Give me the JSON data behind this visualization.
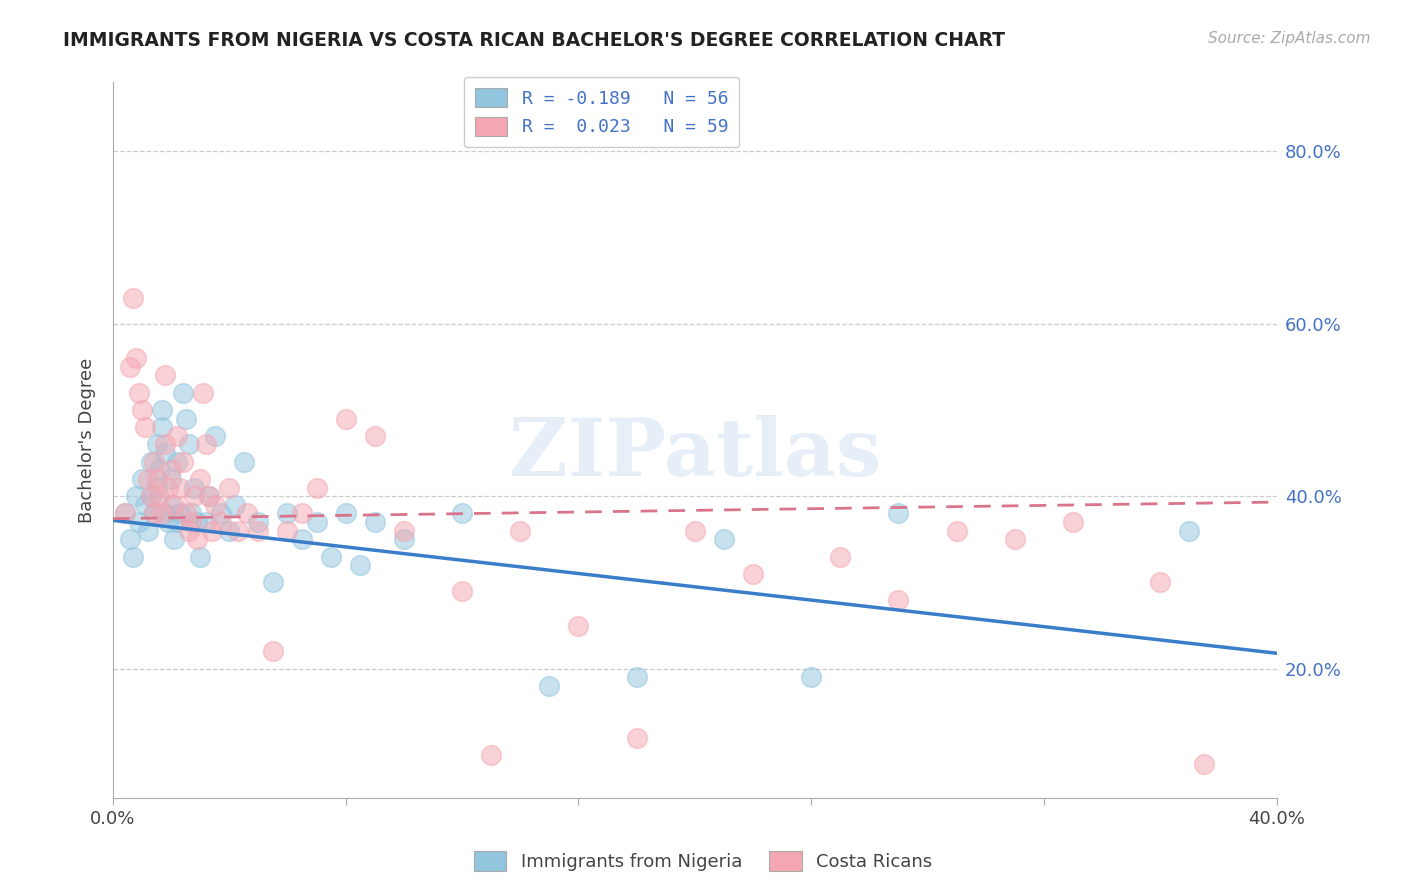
{
  "title": "IMMIGRANTS FROM NIGERIA VS COSTA RICAN BACHELOR'S DEGREE CORRELATION CHART",
  "source": "Source: ZipAtlas.com",
  "ylabel": "Bachelor's Degree",
  "xlim": [
    0.0,
    0.4
  ],
  "ylim": [
    0.05,
    0.88
  ],
  "yticks": [
    0.2,
    0.4,
    0.6,
    0.8
  ],
  "ytick_labels": [
    "20.0%",
    "40.0%",
    "60.0%",
    "80.0%"
  ],
  "legend_entry1": "R = -0.189   N = 56",
  "legend_entry2": "R =  0.023   N = 59",
  "blue_color": "#92c5de",
  "pink_color": "#f4a6b2",
  "blue_line_color": "#3a7dc9",
  "pink_line_color": "#d9748a",
  "watermark": "ZIPatlas",
  "blue_intercept": 0.372,
  "blue_slope": -0.385,
  "pink_intercept": 0.374,
  "pink_slope": 0.048,
  "blue_scatter_x": [
    0.004,
    0.006,
    0.007,
    0.008,
    0.009,
    0.01,
    0.011,
    0.012,
    0.013,
    0.013,
    0.014,
    0.015,
    0.015,
    0.016,
    0.017,
    0.017,
    0.018,
    0.018,
    0.019,
    0.02,
    0.02,
    0.021,
    0.022,
    0.022,
    0.023,
    0.024,
    0.025,
    0.026,
    0.027,
    0.028,
    0.029,
    0.03,
    0.032,
    0.033,
    0.035,
    0.037,
    0.04,
    0.042,
    0.045,
    0.05,
    0.055,
    0.06,
    0.065,
    0.07,
    0.075,
    0.08,
    0.085,
    0.09,
    0.1,
    0.12,
    0.15,
    0.18,
    0.21,
    0.24,
    0.27,
    0.37
  ],
  "blue_scatter_y": [
    0.38,
    0.35,
    0.33,
    0.4,
    0.37,
    0.42,
    0.39,
    0.36,
    0.4,
    0.44,
    0.38,
    0.41,
    0.46,
    0.43,
    0.5,
    0.48,
    0.38,
    0.45,
    0.37,
    0.42,
    0.39,
    0.35,
    0.37,
    0.44,
    0.38,
    0.52,
    0.49,
    0.46,
    0.38,
    0.41,
    0.37,
    0.33,
    0.37,
    0.4,
    0.47,
    0.38,
    0.36,
    0.39,
    0.44,
    0.37,
    0.3,
    0.38,
    0.35,
    0.37,
    0.33,
    0.38,
    0.32,
    0.37,
    0.35,
    0.38,
    0.18,
    0.19,
    0.35,
    0.19,
    0.38,
    0.36
  ],
  "pink_scatter_x": [
    0.004,
    0.006,
    0.007,
    0.008,
    0.009,
    0.01,
    0.011,
    0.012,
    0.013,
    0.014,
    0.014,
    0.015,
    0.016,
    0.017,
    0.018,
    0.018,
    0.019,
    0.02,
    0.021,
    0.022,
    0.023,
    0.024,
    0.025,
    0.026,
    0.027,
    0.028,
    0.029,
    0.03,
    0.031,
    0.032,
    0.033,
    0.034,
    0.035,
    0.037,
    0.04,
    0.043,
    0.046,
    0.05,
    0.055,
    0.06,
    0.065,
    0.07,
    0.08,
    0.09,
    0.1,
    0.12,
    0.14,
    0.16,
    0.2,
    0.22,
    0.25,
    0.27,
    0.29,
    0.31,
    0.33,
    0.36,
    0.375,
    0.18,
    0.13
  ],
  "pink_scatter_y": [
    0.38,
    0.55,
    0.63,
    0.56,
    0.52,
    0.5,
    0.48,
    0.42,
    0.4,
    0.44,
    0.38,
    0.42,
    0.4,
    0.38,
    0.46,
    0.54,
    0.41,
    0.43,
    0.39,
    0.47,
    0.41,
    0.44,
    0.38,
    0.36,
    0.37,
    0.4,
    0.35,
    0.42,
    0.52,
    0.46,
    0.4,
    0.36,
    0.39,
    0.37,
    0.41,
    0.36,
    0.38,
    0.36,
    0.22,
    0.36,
    0.38,
    0.41,
    0.49,
    0.47,
    0.36,
    0.29,
    0.36,
    0.25,
    0.36,
    0.31,
    0.33,
    0.28,
    0.36,
    0.35,
    0.37,
    0.3,
    0.09,
    0.12,
    0.1
  ]
}
